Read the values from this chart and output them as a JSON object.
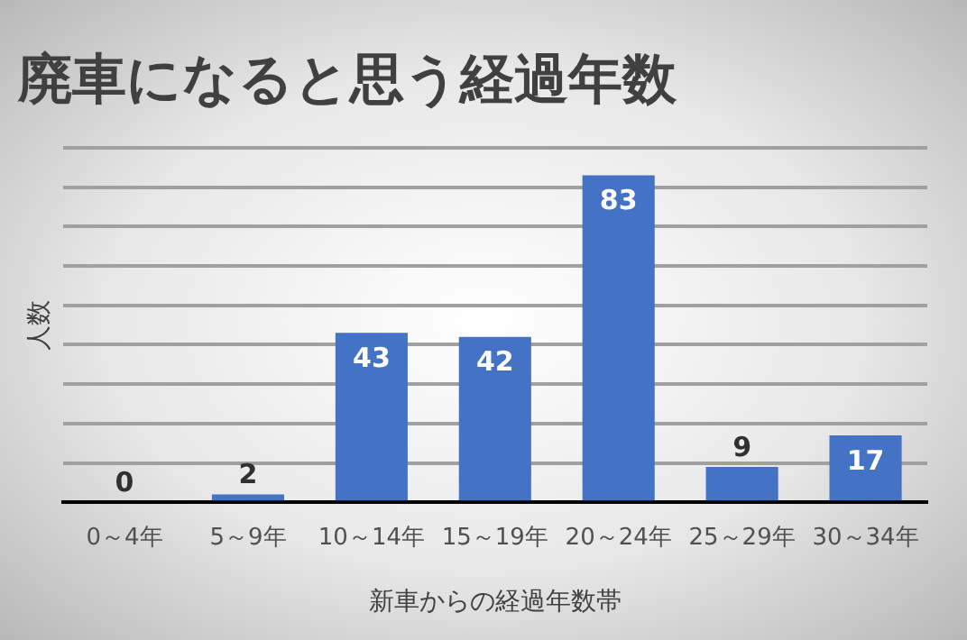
{
  "chart_data": {
    "type": "bar",
    "title": "廃車になると思う経過年数",
    "xlabel": "新車からの経過年数帯",
    "ylabel": "人数",
    "categories": [
      "0～4年",
      "5～9年",
      "10～14年",
      "15～19年",
      "20～24年",
      "25～29年",
      "30～34年"
    ],
    "values": [
      0,
      2,
      43,
      42,
      83,
      9,
      17
    ],
    "color": "#4472c4",
    "ylim": [
      0,
      90
    ],
    "yticks": [
      0,
      {
        "value": 10,
        "label": null
      },
      {
        "value": 20,
        "label": null
      },
      {
        "value": 30,
        "label": null
      },
      {
        "value": 40,
        "label": null
      },
      {
        "value": 50,
        "label": null
      },
      {
        "value": 60,
        "label": null
      },
      {
        "value": 70,
        "label": null
      },
      {
        "value": 80,
        "label": null
      },
      {
        "value": 90,
        "label": null
      }
    ],
    "tick_labels": "x",
    "grid": "y",
    "data_labels": true,
    "legend": false
  }
}
